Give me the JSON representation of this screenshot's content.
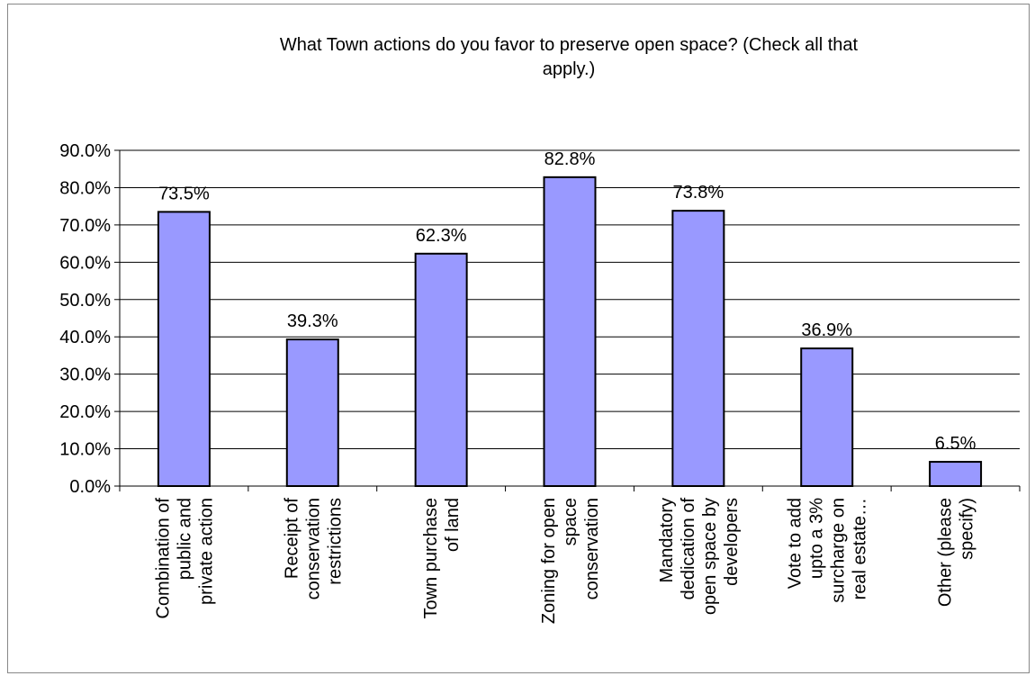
{
  "chart_data": {
    "type": "bar",
    "title_lines": [
      "What Town actions do you favor to preserve open space?  (Check all that",
      "apply.)"
    ],
    "categories": [
      [
        "Combination of",
        "public and",
        "private action"
      ],
      [
        "Receipt of",
        "conservation",
        "restrictions"
      ],
      [
        "Town purchase",
        "of land"
      ],
      [
        "Zoning for open",
        "space",
        "conservation"
      ],
      [
        "Mandatory",
        "dedication of",
        "open space by",
        "developers"
      ],
      [
        "Vote to add",
        "upto a 3%",
        "surcharge on",
        "real estate…"
      ],
      [
        "Other (please",
        "specify)"
      ]
    ],
    "values": [
      73.5,
      39.3,
      62.3,
      82.8,
      73.8,
      36.9,
      6.5
    ],
    "data_labels": [
      "73.5%",
      "39.3%",
      "62.3%",
      "82.8%",
      "73.8%",
      "36.9%",
      "6.5%"
    ],
    "ylim": [
      0,
      90
    ],
    "yticks": [
      "0.0%",
      "10.0%",
      "20.0%",
      "30.0%",
      "40.0%",
      "50.0%",
      "60.0%",
      "70.0%",
      "80.0%",
      "90.0%"
    ],
    "grid": true,
    "bar_color": "#9999ff",
    "bar_stroke": "#000000",
    "grid_color": "#000000"
  }
}
